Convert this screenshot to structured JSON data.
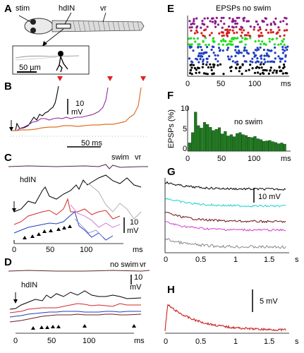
{
  "figure": {
    "panel_labels": {
      "A": "A",
      "B": "B",
      "C": "C",
      "D": "D",
      "E": "E",
      "F": "F",
      "G": "G",
      "H": "H"
    },
    "panelA": {
      "stim": "stim",
      "hdIN": "hdIN",
      "vr": "vr",
      "scale": "50 µm"
    },
    "panelB": {
      "scale_y": "10",
      "scale_y_unit": "mV",
      "scale_x": "50 ms"
    },
    "panelC": {
      "swim": "swim",
      "vr": "vr",
      "hdIN": "hdIN",
      "scale_y": "10",
      "scale_y_unit": "mV",
      "xticks": [
        "0",
        "50",
        "100"
      ],
      "xunit": "ms"
    },
    "panelD": {
      "no_swim": "no swim",
      "vr": "vr",
      "hdIN": "hdIN",
      "scale_y": "10",
      "scale_y_unit": "mV",
      "xticks": [
        "0",
        "50",
        "100"
      ],
      "xunit": "ms"
    },
    "panelE": {
      "title": "EPSPs no swim",
      "xticks": [
        "0",
        "50",
        "100"
      ],
      "xunit": "ms"
    },
    "panelF": {
      "ylabel": "EPSPs (%)",
      "yticks": [
        "0",
        "5",
        "10"
      ],
      "annot": "no swim",
      "xticks": [
        "0",
        "50",
        "100"
      ],
      "xunit": "ms"
    },
    "panelG": {
      "scale": "10 mV",
      "xticks": [
        "0",
        "0.5",
        "1",
        "1.5"
      ],
      "xunit": "s"
    },
    "panelH": {
      "scale": "5 mV",
      "xticks": [
        "0",
        "0.5",
        "1",
        "1.5"
      ],
      "xunit": "s"
    }
  },
  "chart_data": [
    {
      "type": "scatter",
      "panel": "E",
      "title": "EPSPs no swim",
      "xlabel": "ms",
      "xlim": [
        0,
        125
      ],
      "series": [
        {
          "color": "#8b1a8b",
          "rows": [
            1,
            2,
            3,
            4
          ]
        },
        {
          "color": "#d42020",
          "rows": [
            5,
            6,
            7
          ]
        },
        {
          "color": "#22dd22",
          "rows": [
            8,
            9,
            10
          ]
        },
        {
          "color": "#1f3fbf",
          "rows": [
            11,
            12,
            13,
            14,
            15,
            16
          ]
        },
        {
          "color": "#000000",
          "rows": [
            17,
            18,
            19,
            20
          ]
        }
      ]
    },
    {
      "type": "bar",
      "panel": "F",
      "ylabel": "EPSPs (%)",
      "xlabel": "ms",
      "ylim": [
        0,
        11
      ],
      "bar_color": "#1e7a1e",
      "bin_width_ms": 4,
      "x_start": 0,
      "values": [
        2.0,
        4.5,
        9.5,
        6.2,
        5.6,
        7.0,
        6.5,
        5.8,
        5.0,
        5.3,
        5.7,
        4.2,
        4.8,
        3.7,
        4.0,
        3.5,
        4.3,
        4.5,
        4.0,
        3.8,
        3.4,
        3.3,
        3.6,
        3.0,
        2.8,
        2.4,
        2.5,
        2.6,
        2.3,
        2.1,
        1.8,
        2.0,
        1.7
      ]
    }
  ]
}
